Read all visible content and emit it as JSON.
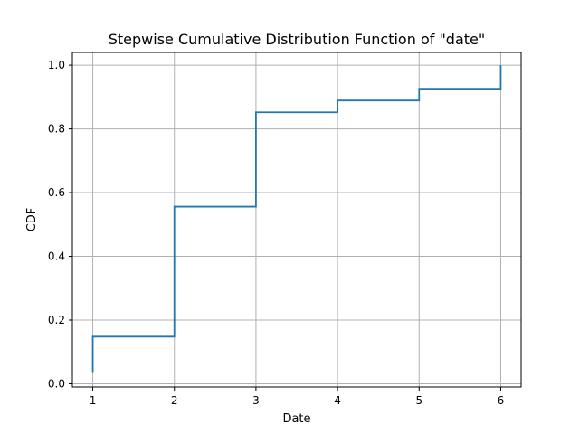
{
  "chart_data": {
    "type": "line",
    "step": "post",
    "title": "Stepwise Cumulative Distribution Function of \"date\"",
    "xlabel": "Date",
    "ylabel": "CDF",
    "xlim": [
      0.75,
      6.25
    ],
    "ylim": [
      -0.01,
      1.04
    ],
    "xticks": [
      1,
      2,
      3,
      4,
      5,
      6
    ],
    "xtick_labels": [
      "1",
      "2",
      "3",
      "4",
      "5",
      "6"
    ],
    "yticks": [
      0.0,
      0.2,
      0.4,
      0.6,
      0.8,
      1.0
    ],
    "ytick_labels": [
      "0.0",
      "0.2",
      "0.4",
      "0.6",
      "0.8",
      "1.0"
    ],
    "grid": true,
    "series": [
      {
        "color": "#1f77b4",
        "x": [
          1,
          1,
          2,
          3,
          4,
          5,
          6
        ],
        "y": [
          0.037,
          0.148,
          0.556,
          0.852,
          0.889,
          0.926,
          1.0
        ]
      }
    ]
  }
}
